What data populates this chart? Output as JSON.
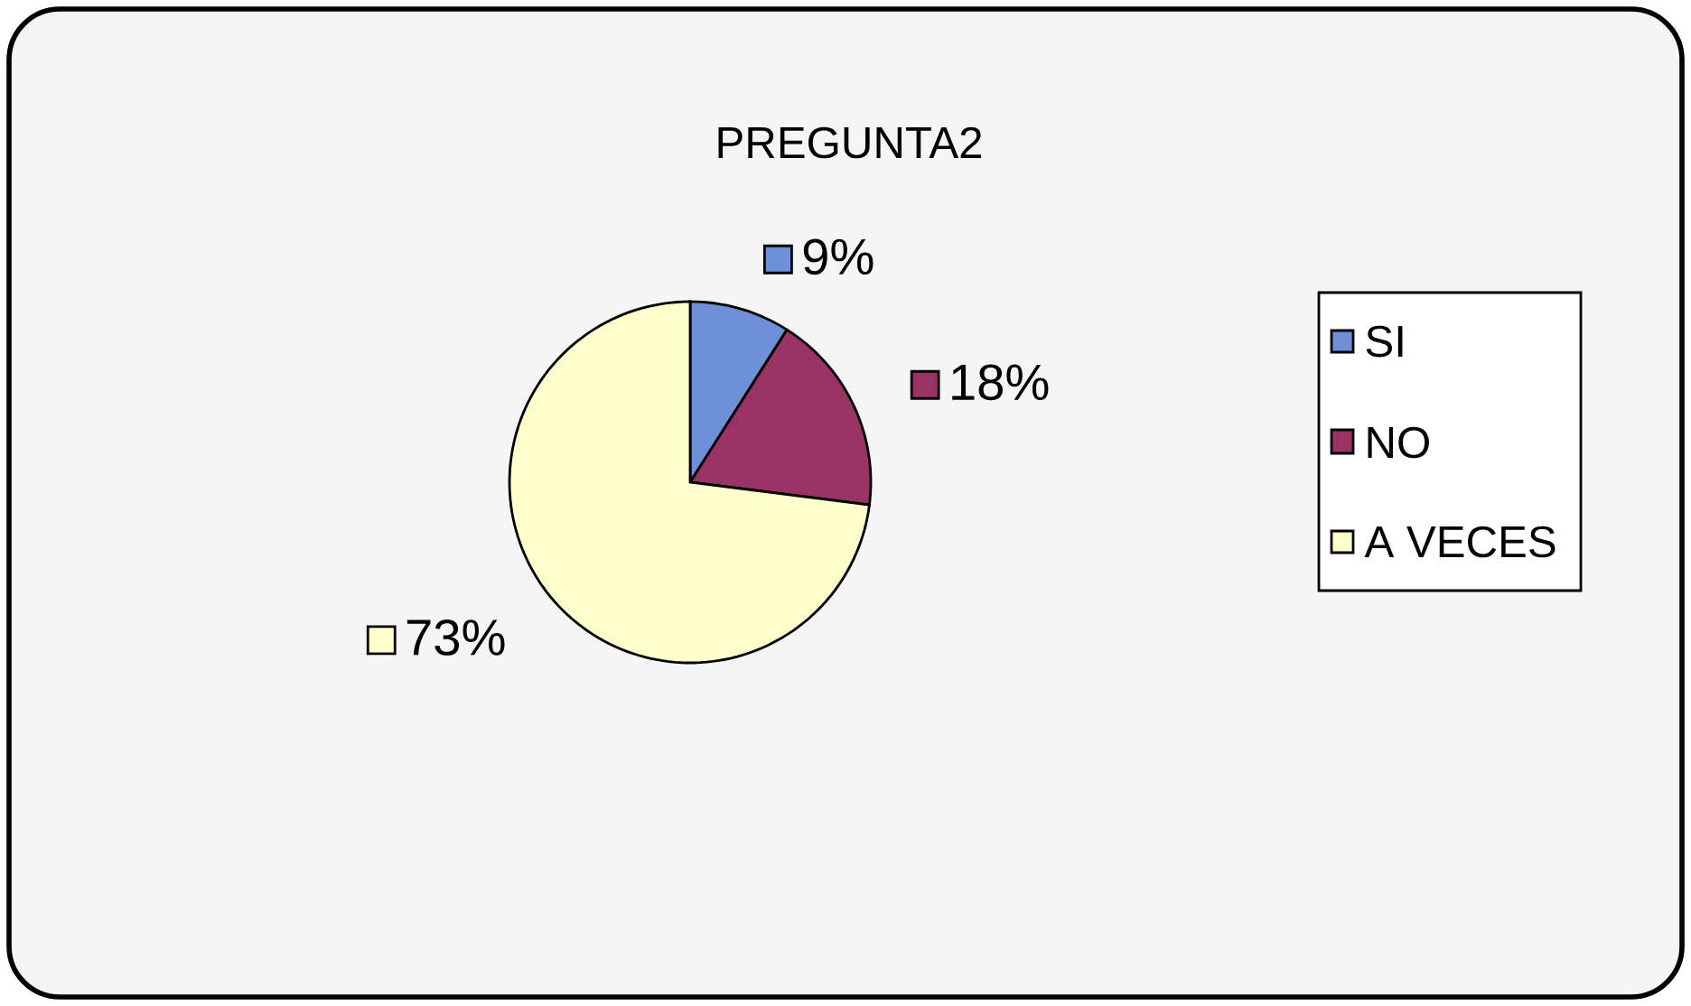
{
  "chart_data": {
    "type": "pie",
    "title": "PREGUNTA2",
    "categories": [
      "SI",
      "NO",
      "A VECES"
    ],
    "values": [
      9,
      18,
      73
    ],
    "value_labels": [
      "9%",
      "18%",
      "73%"
    ],
    "colors": [
      "#6f8fd8",
      "#993366",
      "#ffffcc"
    ],
    "legend": "right"
  }
}
